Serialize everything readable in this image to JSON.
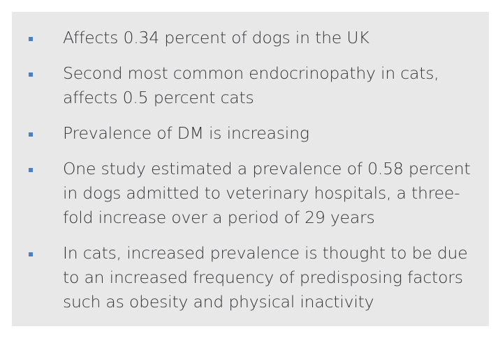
{
  "colors": {
    "panel_background": "#e8e8e9",
    "bullet": "#4a80c8",
    "text": "#333436"
  },
  "bullets": [
    {
      "icon": "square-bullet-icon",
      "text": "Affects 0.34 percent of dogs in the UK"
    },
    {
      "icon": "square-bullet-icon",
      "text": "Second most common endocrinopathy in cats, affects 0.5 percent cats"
    },
    {
      "icon": "square-bullet-icon",
      "text": "Prevalence of DM is increasing"
    },
    {
      "icon": "square-bullet-icon",
      "text": "One study estimated a prevalence of 0.58 percent in dogs admitted to veterinary hospitals, a three-fold increase over a period of 29 years"
    },
    {
      "icon": "square-bullet-icon",
      "text": "In cats, increased prevalence is thought to be due to an increased frequency of predisposing factors such as obesity and physical inactivity"
    }
  ]
}
